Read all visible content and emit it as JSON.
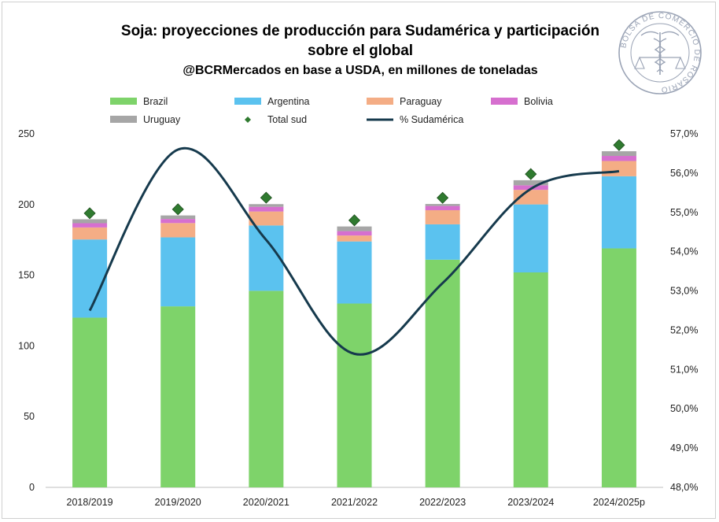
{
  "chart_data": {
    "type": "bar",
    "stacked": true,
    "title": "Soja: proyecciones de producción para Sudamérica y participación sobre el global",
    "title_lines": [
      "Soja: proyecciones de producción para Sudamérica y participación",
      "sobre el global"
    ],
    "subtitle": "@BCRMercados en base a USDA, en millones de toneladas",
    "categories": [
      "2018/2019",
      "2019/2020",
      "2020/2021",
      "2021/2022",
      "2022/2023",
      "2023/2024",
      "2024/2025p"
    ],
    "series": [
      {
        "name": "Brazil",
        "color": "#7ed36a",
        "values": [
          120,
          128,
          139,
          130,
          161,
          152,
          169
        ]
      },
      {
        "name": "Argentina",
        "color": "#5bc2ef",
        "values": [
          55.3,
          48.8,
          46.2,
          43.9,
          25.0,
          48.1,
          51.0
        ]
      },
      {
        "name": "Paraguay",
        "color": "#f4ad85",
        "values": [
          8.5,
          10.1,
          9.9,
          4.2,
          10.0,
          10.3,
          10.8
        ]
      },
      {
        "name": "Bolivia",
        "color": "#d66fcf",
        "values": [
          3.0,
          2.9,
          3.3,
          3.1,
          3.0,
          3.2,
          3.6
        ]
      },
      {
        "name": "Uruguay",
        "color": "#a6a6a6",
        "values": [
          2.8,
          2.5,
          1.9,
          3.3,
          1.4,
          3.6,
          3.3
        ]
      }
    ],
    "total_series": {
      "name": "Total sud",
      "color": "#2f7a2f",
      "values": [
        190.5,
        193.3,
        201.5,
        185.5,
        201.4,
        218.2,
        238.7
      ]
    },
    "share_series": {
      "name": "% Sudamérica",
      "color": "#163a4d",
      "axis": "right",
      "values": [
        52.5,
        56.6,
        54.3,
        51.4,
        53.2,
        55.6,
        56.05
      ]
    },
    "ylim": [
      0,
      250
    ],
    "yticks": [
      0,
      50,
      100,
      150,
      200,
      250
    ],
    "y2lim": [
      48.0,
      57.0
    ],
    "y2ticks": [
      "48,0%",
      "49,0%",
      "50,0%",
      "51,0%",
      "52,0%",
      "53,0%",
      "54,0%",
      "55,0%",
      "56,0%",
      "57,0%"
    ],
    "grid": false,
    "legend_position": "top"
  },
  "logo": {
    "text": "BOLSA DE COMERCIO DE ROSARIO",
    "color": "#9aa3b5"
  }
}
